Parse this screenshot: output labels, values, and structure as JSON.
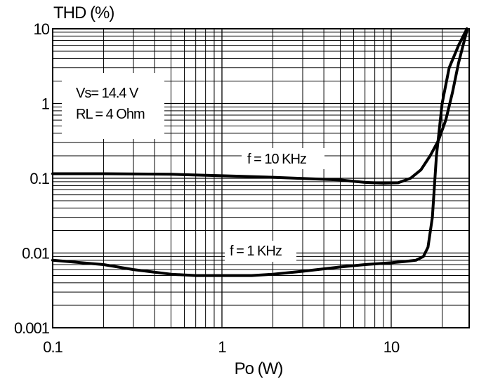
{
  "chart_data": {
    "type": "line",
    "ylabel": "THD (%)",
    "xlabel": "Po (W)",
    "x_scale": "log",
    "y_scale": "log",
    "xlim": [
      0.1,
      28
    ],
    "ylim": [
      0.001,
      10
    ],
    "x_ticks": [
      0.1,
      1,
      10
    ],
    "x_tick_labels": [
      "0.1",
      "1",
      "10"
    ],
    "y_ticks": [
      0.001,
      0.01,
      0.1,
      1,
      10
    ],
    "y_tick_labels": [
      "0.001",
      "0.01",
      "0.1",
      "1",
      "10"
    ],
    "grid": true,
    "conditions": [
      "Vs= 14.4 V",
      "RL = 4 Ohm"
    ],
    "series": [
      {
        "name": "f = 10 KHz",
        "x": [
          0.1,
          0.2,
          0.5,
          1,
          2,
          5,
          7,
          9,
          11,
          13,
          15,
          17,
          19,
          21,
          23,
          25,
          28
        ],
        "y": [
          0.115,
          0.115,
          0.113,
          0.108,
          0.103,
          0.095,
          0.088,
          0.086,
          0.087,
          0.1,
          0.13,
          0.2,
          0.32,
          0.6,
          1.4,
          3.5,
          9.5
        ]
      },
      {
        "name": "f = 1 KHz",
        "x": [
          0.1,
          0.2,
          0.3,
          0.5,
          0.7,
          1,
          1.5,
          2,
          3,
          5,
          7,
          10,
          12,
          14,
          15.5,
          16.5,
          17.5,
          18.5,
          20,
          22,
          25,
          28
        ],
        "y": [
          0.008,
          0.007,
          0.006,
          0.0052,
          0.005,
          0.005,
          0.005,
          0.0052,
          0.0057,
          0.0065,
          0.007,
          0.0074,
          0.0077,
          0.008,
          0.009,
          0.012,
          0.03,
          0.2,
          1.0,
          3.0,
          6.0,
          10
        ]
      }
    ]
  }
}
